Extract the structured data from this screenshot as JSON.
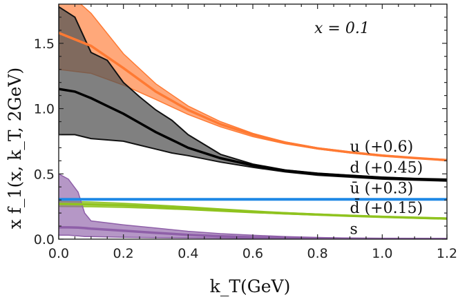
{
  "chart_data": {
    "type": "area",
    "title": "",
    "annotation": "x = 0.1",
    "xlabel": "k_T(GeV)",
    "ylabel": "x f_1(x, k_T, 2GeV)",
    "xlim": [
      0.0,
      1.2
    ],
    "ylim": [
      0.0,
      1.8
    ],
    "xticks": [
      "0.0",
      "0.2",
      "0.4",
      "0.6",
      "0.8",
      "1.0",
      "1.2"
    ],
    "yticks": [
      "0.0",
      "0.5",
      "1.0",
      "1.5"
    ],
    "grid": false,
    "series": [
      {
        "name": "u (+0.6)",
        "color": "#ff7a33",
        "x": [
          0.0,
          0.1,
          0.2,
          0.3,
          0.4,
          0.5,
          0.6,
          0.7,
          0.8,
          0.9,
          1.0,
          1.1,
          1.2
        ],
        "upper": [
          1.95,
          1.73,
          1.42,
          1.19,
          1.02,
          0.9,
          0.81,
          0.745,
          0.7,
          0.67,
          0.645,
          0.625,
          0.61
        ],
        "lower": [
          1.3,
          1.27,
          1.18,
          1.07,
          0.955,
          0.86,
          0.785,
          0.73,
          0.69,
          0.66,
          0.635,
          0.62,
          0.6
        ],
        "central": [
          1.58,
          1.48,
          1.31,
          1.13,
          0.99,
          0.88,
          0.8,
          0.74,
          0.695,
          0.665,
          0.64,
          0.622,
          0.605
        ]
      },
      {
        "name": "d (+0.45)",
        "color": "#555555",
        "x": [
          0.0,
          0.05,
          0.1,
          0.15,
          0.2,
          0.25,
          0.3,
          0.35,
          0.4,
          0.5,
          0.6,
          0.7,
          0.8,
          0.9,
          1.0,
          1.1,
          1.2
        ],
        "upper": [
          1.78,
          1.7,
          1.43,
          1.37,
          1.2,
          1.09,
          0.99,
          0.91,
          0.8,
          0.65,
          0.575,
          0.53,
          0.505,
          0.49,
          0.475,
          0.465,
          0.46
        ],
        "lower": [
          0.8,
          0.8,
          0.77,
          0.76,
          0.75,
          0.72,
          0.69,
          0.66,
          0.64,
          0.59,
          0.55,
          0.515,
          0.49,
          0.475,
          0.46,
          0.452,
          0.445
        ],
        "central": [
          1.15,
          1.13,
          1.08,
          1.02,
          0.96,
          0.89,
          0.82,
          0.76,
          0.7,
          0.62,
          0.565,
          0.525,
          0.5,
          0.485,
          0.47,
          0.46,
          0.452
        ]
      },
      {
        "name": "ū (+0.3)",
        "color": "#1e88e5",
        "x": [
          0.0,
          1.2
        ],
        "upper": [
          0.31,
          0.31
        ],
        "lower": [
          0.3,
          0.3
        ],
        "central": [
          0.305,
          0.305
        ]
      },
      {
        "name": "d̄ (+0.15)",
        "color": "#8fc31f",
        "x": [
          0.0,
          0.1,
          0.2,
          0.3,
          0.4,
          0.5,
          0.6,
          0.7,
          0.8,
          0.9,
          1.0,
          1.1,
          1.2
        ],
        "upper": [
          0.29,
          0.285,
          0.275,
          0.262,
          0.248,
          0.232,
          0.217,
          0.204,
          0.193,
          0.183,
          0.175,
          0.168,
          0.162
        ],
        "lower": [
          0.25,
          0.248,
          0.243,
          0.235,
          0.225,
          0.213,
          0.202,
          0.192,
          0.183,
          0.175,
          0.167,
          0.16,
          0.153
        ],
        "central": [
          0.27,
          0.266,
          0.259,
          0.248,
          0.236,
          0.222,
          0.209,
          0.198,
          0.188,
          0.179,
          0.171,
          0.164,
          0.158
        ]
      },
      {
        "name": "s",
        "color": "#8e5fa8",
        "x": [
          0.0,
          0.03,
          0.06,
          0.08,
          0.1,
          0.2,
          0.3,
          0.4,
          0.5,
          0.6,
          0.7,
          0.8,
          0.9,
          1.0,
          1.2
        ],
        "upper": [
          0.5,
          0.46,
          0.36,
          0.2,
          0.14,
          0.11,
          0.085,
          0.06,
          0.042,
          0.03,
          0.02,
          0.013,
          0.008,
          0.005,
          0.002
        ],
        "lower": [
          0.03,
          0.03,
          0.025,
          0.02,
          0.02,
          0.015,
          0.012,
          0.01,
          0.008,
          0.006,
          0.005,
          0.004,
          0.003,
          0.002,
          0.001
        ],
        "central": [
          0.09,
          0.09,
          0.088,
          0.085,
          0.08,
          0.065,
          0.048,
          0.033,
          0.022,
          0.014,
          0.009,
          0.006,
          0.004,
          0.002,
          0.001
        ]
      }
    ],
    "labels": [
      {
        "text": "u (+0.6)",
        "x": 0.9,
        "y": 0.67
      },
      {
        "text": "d (+0.45)",
        "x": 0.9,
        "y": 0.51
      },
      {
        "text": "ū (+0.3)",
        "x": 0.9,
        "y": 0.35
      },
      {
        "text": "d̄ (+0.15)",
        "x": 0.9,
        "y": 0.2
      },
      {
        "text": "s",
        "x": 0.9,
        "y": 0.04
      }
    ]
  }
}
